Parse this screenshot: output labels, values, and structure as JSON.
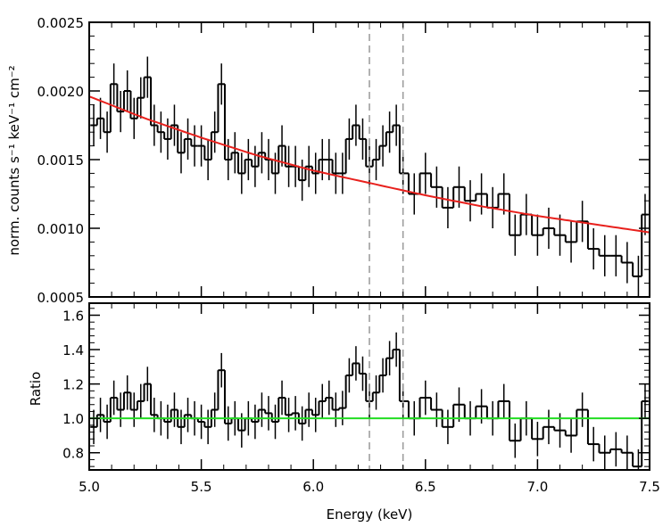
{
  "chart_data": [
    {
      "type": "line",
      "panel": "top",
      "xlabel": "",
      "ylabel": "norm. counts s⁻¹ keV⁻¹ cm⁻²",
      "xlim": [
        5.0,
        7.5
      ],
      "ylim": [
        0.0005,
        0.0025
      ],
      "y_ticks": [
        "0.0005",
        "0.0010",
        "0.0015",
        "0.0020",
        "0.0025"
      ],
      "x_ticks_labeled": false,
      "vertical_dashed_lines": [
        6.25,
        6.4
      ],
      "model": {
        "color": "#e8201c",
        "x": [
          5.0,
          5.25,
          5.5,
          5.75,
          6.0,
          6.25,
          6.5,
          6.75,
          7.0,
          7.25,
          7.5
        ],
        "y": [
          0.00196,
          0.0018,
          0.00166,
          0.00153,
          0.00142,
          0.00133,
          0.00124,
          0.00116,
          0.00109,
          0.00103,
          0.00097
        ]
      },
      "data_series": {
        "x": [
          5.02,
          5.05,
          5.08,
          5.11,
          5.14,
          5.17,
          5.2,
          5.23,
          5.26,
          5.29,
          5.32,
          5.35,
          5.38,
          5.41,
          5.44,
          5.47,
          5.5,
          5.53,
          5.56,
          5.59,
          5.62,
          5.65,
          5.68,
          5.71,
          5.74,
          5.77,
          5.8,
          5.83,
          5.86,
          5.89,
          5.92,
          5.95,
          5.98,
          6.01,
          6.04,
          6.07,
          6.1,
          6.13,
          6.16,
          6.19,
          6.22,
          6.25,
          6.28,
          6.31,
          6.34,
          6.37,
          6.4,
          6.45,
          6.5,
          6.55,
          6.6,
          6.65,
          6.7,
          6.75,
          6.8,
          6.85,
          6.9,
          6.95,
          7.0,
          7.05,
          7.1,
          7.15,
          7.2,
          7.25,
          7.3,
          7.35,
          7.4,
          7.45,
          7.48
        ],
        "y": [
          0.00175,
          0.0018,
          0.0017,
          0.00205,
          0.00185,
          0.002,
          0.0018,
          0.00195,
          0.0021,
          0.00175,
          0.0017,
          0.00165,
          0.00175,
          0.00155,
          0.00165,
          0.0016,
          0.0016,
          0.0015,
          0.0017,
          0.00205,
          0.0015,
          0.00155,
          0.0014,
          0.0015,
          0.00145,
          0.00155,
          0.0015,
          0.0014,
          0.0016,
          0.00145,
          0.00145,
          0.00135,
          0.00145,
          0.0014,
          0.0015,
          0.0015,
          0.0014,
          0.0014,
          0.00165,
          0.00175,
          0.00165,
          0.00145,
          0.0015,
          0.0016,
          0.0017,
          0.00175,
          0.0014,
          0.00125,
          0.0014,
          0.0013,
          0.00115,
          0.0013,
          0.0012,
          0.00125,
          0.00115,
          0.00125,
          0.00095,
          0.0011,
          0.00095,
          0.001,
          0.00095,
          0.0009,
          0.00105,
          0.00085,
          0.0008,
          0.0008,
          0.00075,
          0.00065,
          0.0011
        ],
        "yerr": 0.00015
      }
    },
    {
      "type": "line",
      "panel": "bottom",
      "xlabel": "Energy (keV)",
      "ylabel": "Ratio",
      "xlim": [
        5.0,
        7.5
      ],
      "ylim": [
        0.7,
        1.67
      ],
      "y_ticks": [
        "0.8",
        "1.0",
        "1.2",
        "1.4",
        "1.6"
      ],
      "x_ticks": [
        "5.0",
        "5.5",
        "6.0",
        "6.5",
        "7.0",
        "7.5"
      ],
      "vertical_dashed_lines": [
        6.25,
        6.4
      ],
      "reference_line": {
        "y": 1.0,
        "color": "#22dd22"
      },
      "data_series": {
        "x": [
          5.02,
          5.05,
          5.08,
          5.11,
          5.14,
          5.17,
          5.2,
          5.23,
          5.26,
          5.29,
          5.32,
          5.35,
          5.38,
          5.41,
          5.44,
          5.47,
          5.5,
          5.53,
          5.56,
          5.59,
          5.62,
          5.65,
          5.68,
          5.71,
          5.74,
          5.77,
          5.8,
          5.83,
          5.86,
          5.89,
          5.92,
          5.95,
          5.98,
          6.01,
          6.04,
          6.07,
          6.1,
          6.13,
          6.16,
          6.19,
          6.22,
          6.25,
          6.28,
          6.31,
          6.34,
          6.37,
          6.4,
          6.45,
          6.5,
          6.55,
          6.6,
          6.65,
          6.7,
          6.75,
          6.8,
          6.85,
          6.9,
          6.95,
          7.0,
          7.05,
          7.1,
          7.15,
          7.2,
          7.25,
          7.3,
          7.35,
          7.4,
          7.45,
          7.48
        ],
        "y": [
          0.95,
          1.02,
          0.98,
          1.12,
          1.05,
          1.15,
          1.05,
          1.1,
          1.2,
          1.02,
          1.0,
          0.98,
          1.05,
          0.95,
          1.02,
          1.0,
          0.98,
          0.95,
          1.05,
          1.28,
          0.97,
          1.0,
          0.93,
          1.0,
          0.98,
          1.05,
          1.03,
          0.98,
          1.12,
          1.02,
          1.03,
          0.97,
          1.05,
          1.02,
          1.1,
          1.12,
          1.05,
          1.06,
          1.25,
          1.32,
          1.26,
          1.1,
          1.15,
          1.25,
          1.35,
          1.4,
          1.1,
          1.0,
          1.12,
          1.05,
          0.95,
          1.08,
          1.0,
          1.07,
          1.0,
          1.1,
          0.87,
          1.0,
          0.88,
          0.95,
          0.93,
          0.9,
          1.05,
          0.85,
          0.8,
          0.82,
          0.8,
          0.72,
          1.1
        ],
        "yerr": 0.1
      }
    }
  ]
}
